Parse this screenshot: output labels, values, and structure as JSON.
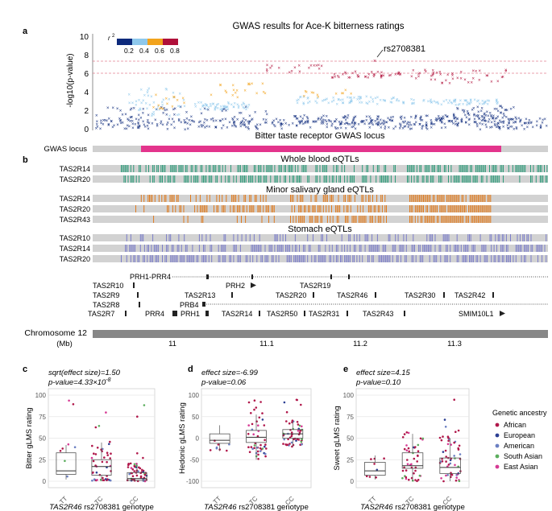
{
  "figure": {
    "panel_a_letter": "a",
    "panel_b_letter": "b",
    "title": "GWAS results for Ace-K bitterness ratings",
    "ylabel": "-log10(p-value)",
    "yticks": [
      "0",
      "2",
      "4",
      "6",
      "8",
      "10"
    ],
    "r2_label": "r",
    "r2_sup": "2",
    "r2_ticks": [
      "0.2",
      "0.4",
      "0.6",
      "0.8"
    ],
    "r2_colors": [
      "#0d2a7c",
      "#8ec8ec",
      "#f2a31c",
      "#b0103a"
    ],
    "lead_snp": "rs2708381",
    "locus_caption": "Bitter taste receptor GWAS locus",
    "gwas_locus_label": "GWAS locus",
    "eqtl_colors": {
      "blood": "#2b9a78",
      "salivary": "#e07a1c",
      "stomach": "#7b7dc8"
    },
    "eqtl_sections": [
      {
        "title": "Whole blood eQTLs",
        "genes": [
          "TAS2R14",
          "TAS2R20"
        ]
      },
      {
        "title": "Minor salivary gland eQTLs",
        "genes": [
          "TAS2R14",
          "TAS2R20",
          "TAS2R43"
        ]
      },
      {
        "title": "Stomach eQTLs",
        "genes": [
          "TAS2R10",
          "TAS2R14",
          "TAS2R20"
        ]
      }
    ],
    "genes": [
      "PRH1-PRR4",
      "TAS2R10",
      "PRH2",
      "TAS2R19",
      "TAS2R9",
      "TAS2R13",
      "TAS2R20",
      "TAS2R46",
      "TAS2R30",
      "TAS2R42",
      "TAS2R8",
      "PRB4",
      "TAS2R7",
      "PRR4",
      "PRH1",
      "TAS2R14",
      "TAS2R50",
      "TAS2R31",
      "TAS2R43",
      "SMIM10L1"
    ],
    "chromosome_label": "Chromosome 12",
    "mb_label": "(Mb)",
    "mb_ticks": [
      "11",
      "11.1",
      "11.2",
      "11.3"
    ]
  },
  "chart_data": [
    {
      "type": "scatter",
      "title": "GWAS results for Ace-K bitterness ratings",
      "ylabel": "-log10(p-value)",
      "ylim": [
        0,
        10
      ],
      "thresholds": [
        7.3,
        6.0
      ],
      "lead_snp": {
        "name": "rs2708381",
        "y": 7.4
      }
    },
    {
      "type": "box",
      "panel": "c",
      "stat_line1": "sqrt(effect size)=1.50",
      "stat_line2_prefix": "p-value=4.33×10",
      "stat_line2_sup": "-8",
      "ylabel": "Bitter gLMS rating",
      "yticks": [
        "0",
        "25",
        "50",
        "75",
        "100"
      ],
      "ylim": [
        0,
        100
      ],
      "categories": [
        "TT",
        "TC",
        "CC"
      ],
      "boxes": [
        {
          "q1": 8,
          "median": 12,
          "q3": 33,
          "lo": 2,
          "hi": 42
        },
        {
          "q1": 7,
          "median": 17,
          "q3": 25,
          "lo": 0,
          "hi": 45
        },
        {
          "q1": 1,
          "median": 3,
          "q3": 10,
          "lo": 0,
          "hi": 20
        }
      ],
      "xlabel_gene": "TAS2R46",
      "xlabel_rest": " rs2708381 genotype"
    },
    {
      "type": "box",
      "panel": "d",
      "stat_line1": "effect size=-6.99",
      "stat_line2_prefix": "p-value=0.06",
      "stat_line2_sup": "",
      "ylabel": "Hedonic gLMS rating",
      "yticks": [
        "-100",
        "-50",
        "0",
        "50",
        "100"
      ],
      "ylim": [
        -100,
        100
      ],
      "categories": [
        "TT",
        "TC",
        "CC"
      ],
      "boxes": [
        {
          "q1": -12,
          "median": -5,
          "q3": 10,
          "lo": -30,
          "hi": 30
        },
        {
          "q1": -10,
          "median": 2,
          "q3": 18,
          "lo": -50,
          "hi": 55
        },
        {
          "q1": 0,
          "median": 10,
          "q3": 20,
          "lo": -20,
          "hi": 38
        }
      ],
      "xlabel_gene": "TAS2R46",
      "xlabel_rest": " rs2708381 genotype"
    },
    {
      "type": "box",
      "panel": "e",
      "stat_line1": "effect size=4.15",
      "stat_line2_prefix": "p-value=0.10",
      "stat_line2_sup": "",
      "ylabel": "Sweet gLMS rating",
      "yticks": [
        "0",
        "25",
        "50",
        "75",
        "100"
      ],
      "ylim": [
        0,
        100
      ],
      "categories": [
        "TT",
        "TC",
        "CC"
      ],
      "boxes": [
        {
          "q1": 7,
          "median": 12,
          "q3": 22,
          "lo": 2,
          "hi": 30
        },
        {
          "q1": 15,
          "median": 18,
          "q3": 33,
          "lo": 0,
          "hi": 55
        },
        {
          "q1": 9,
          "median": 16,
          "q3": 27,
          "lo": 0,
          "hi": 50
        }
      ],
      "xlabel_gene": "TAS2R46",
      "xlabel_rest": " rs2708381 genotype"
    }
  ],
  "legend": {
    "title": "Genetic ancestry",
    "items": [
      {
        "label": "African",
        "color": "#b0174a"
      },
      {
        "label": "European",
        "color": "#2c3f93"
      },
      {
        "label": "American",
        "color": "#6b7fc2"
      },
      {
        "label": "South Asian",
        "color": "#5cae5e"
      },
      {
        "label": "East Asian",
        "color": "#d63a94"
      }
    ]
  }
}
